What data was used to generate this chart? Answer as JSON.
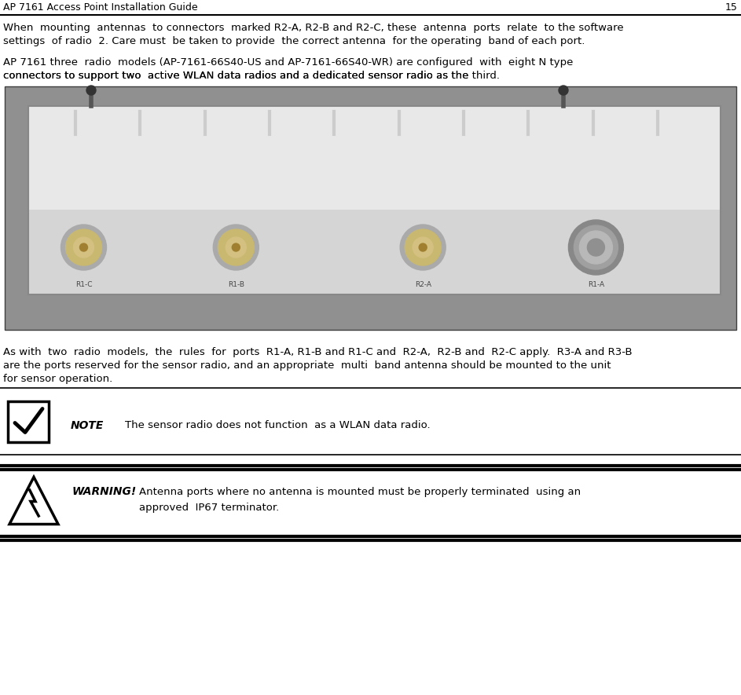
{
  "header_text": "AP 7161 Access Point Installation Guide",
  "page_number": "15",
  "para1_line1": "When  mounting  antennas  to connectors  marked R2-A, R2-B and R2-C, these  antenna  ports  relate  to the software",
  "para1_line2": "settings  of radio  2. Care must  be taken to provide  the correct antenna  for the operating  band of each port.",
  "para2_line1": "AP 7161 three  radio  models (AP-7161-66S40-US and AP-7161-66S40-WR) are configured  with  eight N type",
  "para2_line2_pre": "connectors to support two  active WLAN data radios and a dedicated sensor radio as the ",
  "para2_word": "third",
  "para2_line2_post": ".",
  "para3_line1": "As with  two  radio  models,  the  rules  for  ports  R1-A, R1-B and R1-C and  R2-A,  R2-B and  R2-C apply.  R3-A and R3-B",
  "para3_line2_pre": "are the ports reserved for the sensor radio, and an appropriate  multi  band antenna should be mounted to the ",
  "para3_word": "unit",
  "para3_line3": "for sensor operation.",
  "note_label": "NOTE",
  "note_text": "    The sensor radio does not function  as a WLAN data radio.",
  "warning_label": "WARNING!",
  "warning_line1": "Antenna ports where no antenna is mounted must be properly terminated  using an",
  "warning_line2": "approved  IP67 terminator.",
  "bg_color": "#ffffff",
  "text_color": "#000000",
  "font_size_header": 9.0,
  "font_size_body": 9.5,
  "font_size_note": 9.5,
  "img_bg_color": "#8a8a8a",
  "img_device_color": "#e8e8e8",
  "img_device_mid": "#d0d0d0",
  "img_device_bottom": "#c0c0c0"
}
